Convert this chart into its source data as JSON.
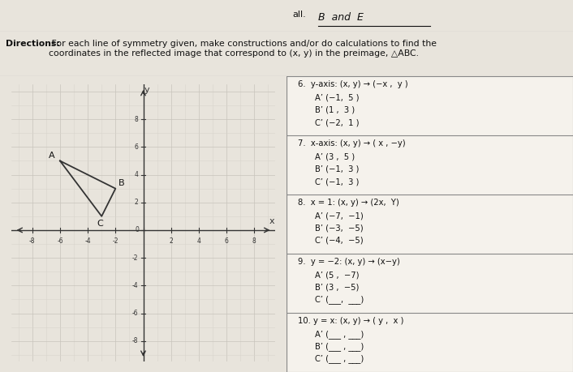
{
  "title_text": "all.",
  "title_written": "B  and  E",
  "directions_bold": "Directions:",
  "directions_rest": " For each line of symmetry given, make constructions and/or do calculations to find the\ncoordinates in the reflected image that correspond to (x, y) in the preimage, △ABC.",
  "grid_xlim": [
    -9.5,
    9.5
  ],
  "grid_ylim": [
    -9.5,
    10.5
  ],
  "triangle": {
    "A": [
      -6,
      5
    ],
    "B": [
      -2,
      3
    ],
    "C": [
      -3,
      1
    ]
  },
  "triangle_color": "#333333",
  "bg_color": "#e8e4dc",
  "graph_bg": "#f0eeea",
  "panel_bg": "#f5f2ec",
  "font_color": "#111111",
  "line_color": "#888888",
  "sections": [
    {
      "header": "6.  y-axis: (x, y) → (−x ,  y )",
      "answers": [
        "A’ (−1,  5 )",
        "B’ (1 ,  3 )",
        "C’ (−2,  1 )"
      ]
    },
    {
      "header": "7.  x-axis: (x, y) → ( x , −y)",
      "answers": [
        "A’ (3 ,  5 )",
        "B’ (−1,  3 )",
        "C’ (−1,  3 )"
      ]
    },
    {
      "header": "8.  x = 1: (x, y) → (2x,  Y)",
      "answers": [
        "A’ (−7,  −1)",
        "B’ (−3,  −5)",
        "C’ (−4,  −5)"
      ]
    },
    {
      "header": "9.  y = −2: (x, y) → (x−y)",
      "answers": [
        "A’ (5 ,  −7)",
        "B’ (3 ,  −5)",
        "C’ (___,  ___)"
      ]
    },
    {
      "header": "10. y = x: (x, y) → ( y ,  x )",
      "answers": [
        "A’ (___ , ___)",
        "B’ (___ , ___)",
        "C’ (___ , ___)"
      ]
    }
  ]
}
